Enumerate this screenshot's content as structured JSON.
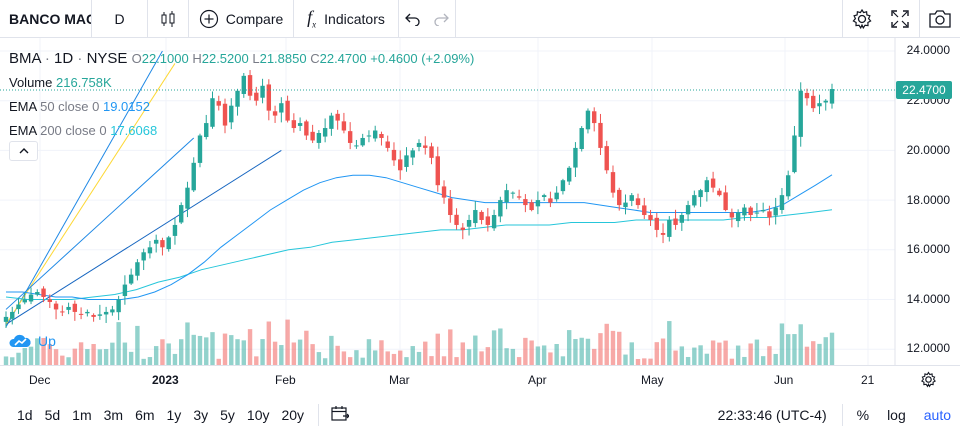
{
  "toolbar": {
    "symbol": "BANCO MAC",
    "interval": "D",
    "compare_label": "Compare",
    "indicators_label": "Indicators"
  },
  "legend": {
    "ticker": "BMA",
    "interval": "1D",
    "exchange": "NYSE",
    "open_label": "O",
    "open": "22.1000",
    "high_label": "H",
    "high": "22.5200",
    "low_label": "L",
    "low": "21.8850",
    "close_label": "C",
    "close": "22.4700",
    "change": "+0.4600 (+2.09%)",
    "volume_label": "Volume",
    "volume": "216.758K",
    "ema50_label": "EMA",
    "ema50_params": "50 close 0",
    "ema50_value": "19.0152",
    "ema200_label": "EMA",
    "ema200_params": "200 close 0",
    "ema200_value": "17.6068"
  },
  "price_axis": [
    "24.0000",
    "22.0000",
    "20.0000",
    "18.0000",
    "16.0000",
    "14.0000",
    "12.0000"
  ],
  "last_price": "22.4700",
  "time_axis": [
    "Dec",
    "2023",
    "Feb",
    "Mar",
    "Apr",
    "May",
    "Jun",
    "21"
  ],
  "ranges": [
    "1d",
    "5d",
    "1m",
    "3m",
    "6m",
    "1y",
    "3y",
    "5y",
    "10y",
    "20y"
  ],
  "clock": "22:33:46 (UTC-4)",
  "scale_options": {
    "percent": "%",
    "log": "log",
    "auto": "auto"
  },
  "watermark_text": "Up",
  "colors": {
    "up": "#26a69a",
    "down": "#ef5350",
    "ema50": "#2196f3",
    "ema200": "#26c6da"
  },
  "chart_data": {
    "type": "candlestick",
    "y_ticks": [
      12,
      14,
      16,
      18,
      20,
      22,
      24
    ],
    "close_series": [
      13.3,
      13.5,
      13.8,
      14.0,
      14.2,
      14.3,
      14.1,
      13.9,
      13.6,
      13.5,
      13.7,
      13.5,
      13.4,
      13.5,
      13.3,
      13.4,
      13.5,
      13.6,
      14.0,
      14.6,
      15.0,
      15.5,
      15.9,
      16.1,
      16.4,
      16.1,
      16.5,
      17.0,
      17.8,
      18.5,
      19.5,
      20.6,
      21.1,
      22.1,
      21.8,
      21.0,
      21.8,
      22.4,
      23.0,
      22.2,
      22.0,
      22.6,
      21.6,
      21.4,
      21.9,
      21.2,
      20.9,
      21.1,
      20.6,
      20.4,
      20.7,
      20.9,
      21.4,
      21.2,
      20.8,
      20.3,
      20.2,
      20.5,
      20.6,
      20.8,
      20.5,
      20.1,
      19.6,
      19.2,
      19.8,
      20.0,
      20.3,
      20.1,
      19.7,
      18.6,
      18.1,
      17.4,
      17.0,
      16.8,
      17.2,
      17.6,
      17.2,
      17.0,
      17.4,
      18.0,
      18.4,
      18.3,
      18.1,
      17.8,
      17.6,
      18.0,
      18.2,
      17.9,
      18.3,
      18.8,
      19.3,
      20.1,
      20.9,
      21.6,
      21.1,
      20.1,
      19.2,
      18.3,
      17.8,
      17.9,
      18.2,
      17.8,
      17.4,
      17.2,
      16.8,
      16.6,
      17.2,
      17.0,
      17.4,
      17.8,
      18.2,
      18.4,
      18.8,
      18.5,
      18.2,
      17.6,
      17.3,
      17.5,
      17.7,
      17.4,
      17.5,
      17.6,
      17.3,
      17.7,
      18.2,
      19.0,
      20.6,
      22.4,
      22.1,
      21.7,
      21.9,
      22.0,
      22.47
    ],
    "ema50": [
      14.3,
      14.3,
      14.2,
      14.1,
      14.1,
      14.0,
      14.0,
      14.0,
      14.1,
      14.3,
      14.6,
      15.0,
      15.5,
      16.1,
      16.6,
      17.1,
      17.6,
      18.0,
      18.4,
      18.7,
      18.9,
      19.0,
      19.0,
      18.9,
      18.7,
      18.5,
      18.3,
      18.1,
      18.0,
      17.9,
      17.9,
      17.9,
      17.9,
      17.9,
      17.9,
      17.9,
      17.8,
      17.7,
      17.6,
      17.5,
      17.5,
      17.5,
      17.5,
      17.5,
      17.5,
      17.5,
      17.6,
      17.8,
      18.2,
      18.6,
      19.02
    ],
    "ema200": [
      14.1,
      14.0,
      14.0,
      14.0,
      14.1,
      14.2,
      14.4,
      14.7,
      14.9,
      15.2,
      15.4,
      15.6,
      15.8,
      16.0,
      16.1,
      16.3,
      16.4,
      16.5,
      16.6,
      16.7,
      16.8,
      16.8,
      16.9,
      17.0,
      17.0,
      17.0,
      17.1,
      17.1,
      17.1,
      17.2,
      17.2,
      17.2,
      17.2,
      17.2,
      17.3,
      17.3,
      17.4,
      17.5,
      17.61
    ],
    "trendlines": [
      {
        "from": [
          0,
          12.9
        ],
        "to": [
          25,
          24.0
        ]
      },
      {
        "from": [
          0,
          13.0
        ],
        "to": [
          44,
          20.0
        ]
      },
      {
        "from": [
          0,
          13.0
        ],
        "to": [
          27,
          23.5
        ]
      },
      {
        "from": [
          0,
          13.6
        ],
        "to": [
          30,
          20.5
        ]
      }
    ]
  }
}
